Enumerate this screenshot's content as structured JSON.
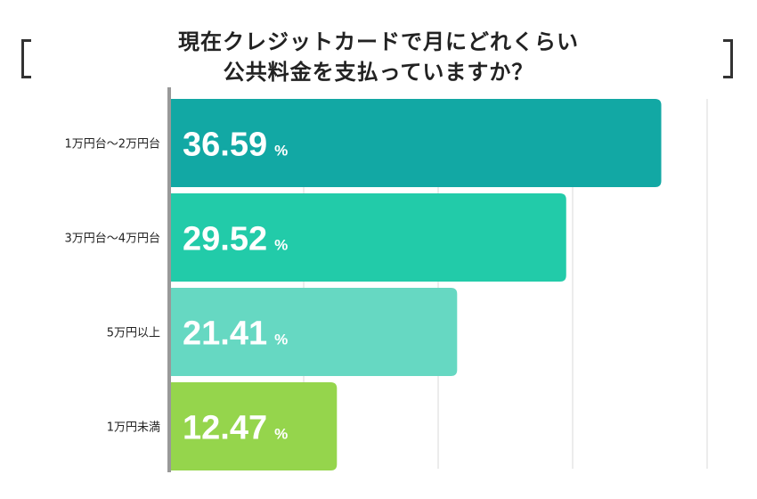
{
  "title": {
    "line1": "現在クレジットカードで月にどれくらい",
    "line2": "公共料金を支払っていますか？"
  },
  "colors": {
    "bar1": "#12a8a4",
    "bar2": "#22cba9",
    "bar3": "#66d8c2",
    "bar4": "#95d54c",
    "axis": "#999999",
    "grid": "#d9d9d9"
  },
  "chart_data": {
    "type": "bar",
    "orientation": "horizontal",
    "categories": [
      "1万円台〜2万円台",
      "3万円台〜4万円台",
      "5万円以上",
      "1万円未満"
    ],
    "values": [
      36.59,
      29.52,
      21.41,
      12.47
    ],
    "value_labels": [
      "36.59",
      "29.52",
      "21.41",
      "12.47"
    ],
    "unit": "%",
    "xlim": [
      0,
      40
    ],
    "grid": true
  }
}
